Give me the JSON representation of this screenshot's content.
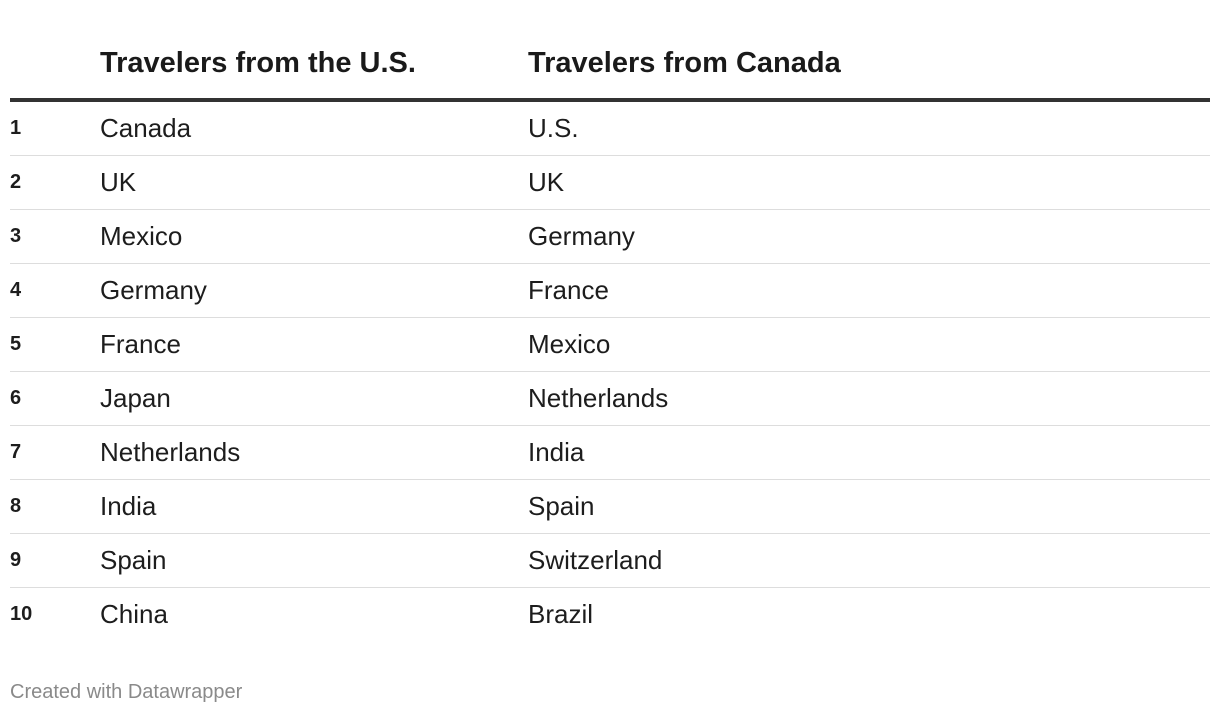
{
  "chart_data": {
    "type": "table",
    "columns": [
      "",
      "Travelers from the U.S.",
      "Travelers from Canada"
    ],
    "rows": [
      {
        "rank": "1",
        "us": "Canada",
        "canada": "U.S."
      },
      {
        "rank": "2",
        "us": "UK",
        "canada": "UK"
      },
      {
        "rank": "3",
        "us": "Mexico",
        "canada": "Germany"
      },
      {
        "rank": "4",
        "us": "Germany",
        "canada": "France"
      },
      {
        "rank": "5",
        "us": "France",
        "canada": "Mexico"
      },
      {
        "rank": "6",
        "us": "Japan",
        "canada": "Netherlands"
      },
      {
        "rank": "7",
        "us": "Netherlands",
        "canada": "India"
      },
      {
        "rank": "8",
        "us": "India",
        "canada": "Spain"
      },
      {
        "rank": "9",
        "us": "Spain",
        "canada": "Switzerland"
      },
      {
        "rank": "10",
        "us": "China",
        "canada": "Brazil"
      }
    ]
  },
  "footer": {
    "credit": "Created with Datawrapper"
  },
  "colors": {
    "text": "#1d1d1d",
    "header_rule": "#333333",
    "row_rule": "#dddddd",
    "footer_text": "#8a8a8a"
  }
}
